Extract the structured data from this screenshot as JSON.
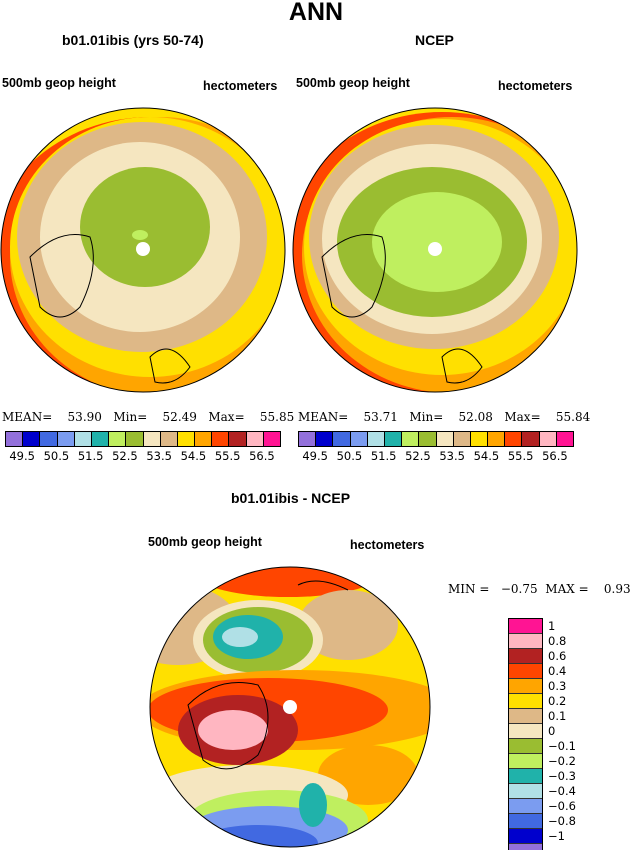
{
  "title": "ANN",
  "panels": [
    {
      "title": "b01.01ibis (yrs 50-74)",
      "left_label": "500mb geop height",
      "right_label": "hectometers",
      "stats": {
        "mean_label": "MEAN=",
        "mean": "53.90",
        "min_label": "Min=",
        "min": "52.49",
        "max_label": "Max=",
        "max": "55.85"
      }
    },
    {
      "title": "NCEP",
      "left_label": "500mb geop height",
      "right_label": "hectometers",
      "stats": {
        "mean_label": "MEAN=",
        "mean": "53.71",
        "min_label": "Min=",
        "min": "52.08",
        "max_label": "Max=",
        "max": "55.84"
      }
    }
  ],
  "colorbar": {
    "colors": [
      "#9370DB",
      "#0000CD",
      "#4169E1",
      "#7B9CF0",
      "#B0E0E6",
      "#20B2AA",
      "#BFEF5F",
      "#9ABD31",
      "#F5E6C0",
      "#DEB887",
      "#FFE000",
      "#FFA500",
      "#FF4500",
      "#B22222",
      "#FFB6C1",
      "#FF1493"
    ],
    "labels": [
      "49.5",
      "50.5",
      "51.5",
      "52.5",
      "53.5",
      "54.5",
      "55.5",
      "56.5"
    ]
  },
  "diff": {
    "title": "b01.01ibis - NCEP",
    "left_label": "500mb geop height",
    "right_label": "hectometers",
    "min_label": "MIN =",
    "min": "−0.75",
    "max_label": "MAX =",
    "max": "0.93",
    "colors": [
      "#FF1493",
      "#FFB6C1",
      "#B22222",
      "#FF4500",
      "#FFA500",
      "#FFE000",
      "#DEB887",
      "#F5E6C0",
      "#9ABD31",
      "#BFEF5F",
      "#20B2AA",
      "#B0E0E6",
      "#7B9CF0",
      "#4169E1",
      "#0000CD",
      "#9370DB"
    ],
    "labels": [
      "1",
      "0.8",
      "0.6",
      "0.4",
      "0.3",
      "0.2",
      "0.1",
      "0",
      "−0.1",
      "−0.2",
      "−0.3",
      "−0.4",
      "−0.6",
      "−0.8",
      "−1"
    ]
  }
}
